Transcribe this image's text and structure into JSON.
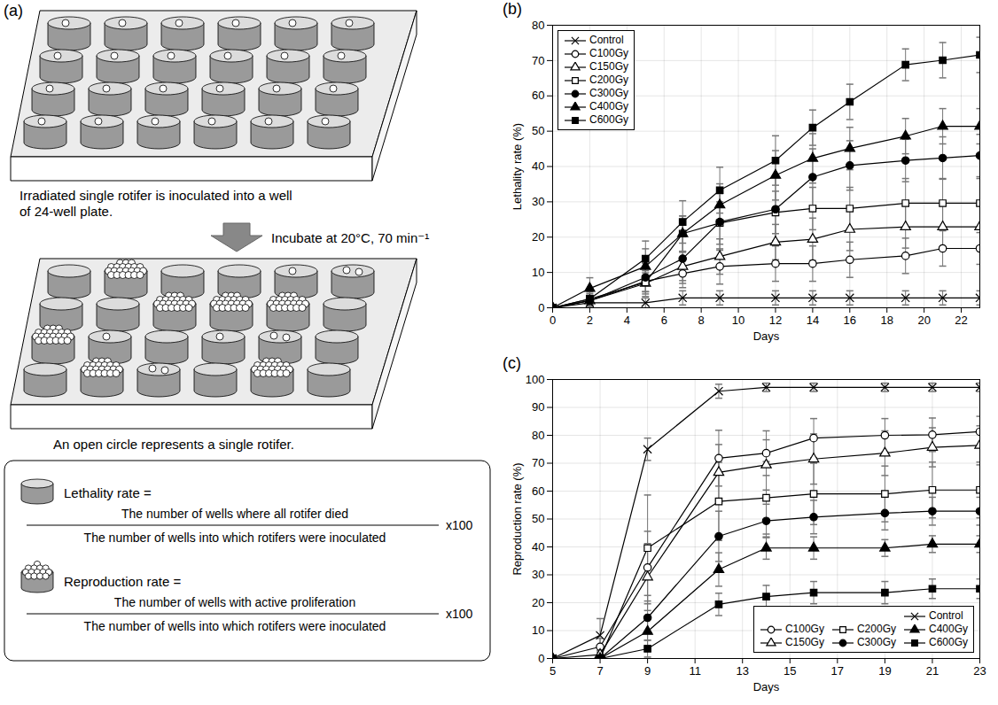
{
  "diagram": {
    "panel_label": "(a)",
    "caption_top": [
      "Irradiated single rotifer is inoculated into a well",
      "of 24-well plate."
    ],
    "arrow_text": "Incubate at 20°C, 70 min⁻¹",
    "caption_bottom": "An open circle represents a single rotifer.",
    "formulas": [
      {
        "name": "Lethality rate =",
        "numerator": "The number of wells where all rotifer died",
        "denominator": "The number of wells into which rotifers were inoculated",
        "factor": "x100"
      },
      {
        "name": "Reproduction rate =",
        "numerator": "The number of wells with active proliferation",
        "denominator": "The number of wells into which rotifers were inoculated",
        "factor": "x100"
      }
    ]
  },
  "chart_data": [
    {
      "type": "line",
      "panel_label": "(b)",
      "x_label": "Days",
      "y_label": "Lethality rate (%)",
      "x": [
        0,
        2,
        5,
        7,
        9,
        12,
        14,
        16,
        19,
        21,
        23
      ],
      "xlim": [
        0,
        23
      ],
      "xticks": [
        0,
        2,
        4,
        6,
        8,
        10,
        12,
        14,
        16,
        18,
        20,
        22
      ],
      "ylim": [
        0,
        80
      ],
      "yticks": [
        0,
        10,
        20,
        30,
        40,
        50,
        60,
        70,
        80
      ],
      "grid": true,
      "legend": "top-left",
      "series": [
        {
          "name": "Control",
          "color": "#000000",
          "marker": "x",
          "values": [
            0,
            1.4,
            1.4,
            2.8,
            2.8,
            2.8,
            2.8,
            2.8,
            2.8,
            2.8,
            2.8
          ],
          "errors": [
            0,
            1.4,
            1.4,
            2,
            2,
            2,
            2,
            2,
            2,
            2,
            2
          ]
        },
        {
          "name": "C100Gy",
          "color": "#000000",
          "marker": "circle-open",
          "values": [
            0,
            2,
            7.5,
            9.7,
            11.7,
            12.5,
            12.5,
            13.6,
            14.7,
            16.8,
            16.8
          ],
          "errors": [
            0,
            1.5,
            3,
            4,
            5,
            5,
            5,
            5,
            5,
            5,
            4.5
          ]
        },
        {
          "name": "C150Gy",
          "color": "#000000",
          "marker": "triangle-open",
          "values": [
            0,
            2,
            6.9,
            11.7,
            14.5,
            18.6,
            19.4,
            22.2,
            22.9,
            22.9,
            22.9
          ],
          "errors": [
            0,
            1.5,
            3,
            4,
            5,
            5,
            6,
            6,
            6,
            6,
            6
          ]
        },
        {
          "name": "C200Gy",
          "color": "#000000",
          "marker": "square-open",
          "values": [
            0,
            2.5,
            7.2,
            21,
            24,
            27,
            28.1,
            28.1,
            29.6,
            29.6,
            29.6
          ],
          "errors": [
            0,
            1.5,
            4,
            5,
            6,
            6,
            6,
            6,
            7,
            7,
            7
          ]
        },
        {
          "name": "C300Gy",
          "color": "#000000",
          "marker": "circle",
          "values": [
            0,
            2,
            8.6,
            13.9,
            24.3,
            27.9,
            37,
            40.3,
            41.7,
            42.4,
            43.1
          ],
          "errors": [
            0,
            1.5,
            4,
            7,
            8,
            9,
            8,
            7,
            6,
            6,
            6
          ]
        },
        {
          "name": "C400Gy",
          "color": "#000000",
          "marker": "triangle",
          "values": [
            0,
            5.5,
            11.7,
            21,
            29.1,
            37.5,
            42.3,
            45.1,
            48.6,
            51.4,
            51.4
          ],
          "errors": [
            0,
            3,
            5,
            5,
            6,
            7,
            7,
            6,
            5,
            5,
            5
          ]
        },
        {
          "name": "C600Gy",
          "color": "#000000",
          "marker": "square",
          "values": [
            0,
            2.5,
            13.9,
            24.3,
            33.3,
            41.7,
            51,
            58.3,
            68.8,
            70.1,
            71.6
          ],
          "errors": [
            0,
            2,
            5,
            6,
            6.5,
            7,
            5,
            5,
            4.5,
            5,
            5
          ]
        }
      ]
    },
    {
      "type": "line",
      "panel_label": "(c)",
      "x_label": "Days",
      "y_label": "Reproduction rate (%)",
      "x": [
        5,
        7,
        9,
        12,
        14,
        16,
        19,
        21,
        23
      ],
      "xlim": [
        5,
        23
      ],
      "xticks": [
        5,
        7,
        9,
        11,
        13,
        15,
        17,
        19,
        21,
        23
      ],
      "ylim": [
        0,
        100
      ],
      "yticks": [
        0,
        10,
        20,
        30,
        40,
        50,
        60,
        70,
        80,
        90,
        100
      ],
      "grid": true,
      "legend": "bottom-right",
      "series": [
        {
          "name": "Control",
          "color": "#000000",
          "marker": "x",
          "values": [
            0,
            8.3,
            75,
            95.8,
            97.2,
            97.2,
            97.2,
            97.2,
            97.2
          ],
          "errors": [
            0,
            6,
            4,
            2.5,
            1.5,
            1.5,
            1.5,
            1.5,
            1.5
          ]
        },
        {
          "name": "C100Gy",
          "color": "#000000",
          "marker": "circle-open",
          "values": [
            0,
            4.2,
            32.6,
            71.8,
            73.6,
            79,
            80,
            80.2,
            81.3
          ],
          "errors": [
            0,
            3,
            13,
            10,
            8,
            7,
            6,
            6,
            5.5
          ]
        },
        {
          "name": "C150Gy",
          "color": "#000000",
          "marker": "triangle-open",
          "values": [
            0,
            1.4,
            29.2,
            66.7,
            69.4,
            71.5,
            73.6,
            75.7,
            76.4
          ],
          "errors": [
            0,
            1.4,
            12,
            10,
            9,
            9,
            8,
            7,
            7
          ]
        },
        {
          "name": "C200Gy",
          "color": "#000000",
          "marker": "square-open",
          "values": [
            0,
            0,
            39.6,
            56.3,
            57.6,
            59,
            59,
            60.4,
            60.4
          ],
          "errors": [
            0,
            0,
            19,
            14,
            13,
            11,
            10,
            10,
            10
          ]
        },
        {
          "name": "C300Gy",
          "color": "#000000",
          "marker": "circle",
          "values": [
            0,
            0,
            14.6,
            43.8,
            49.3,
            50.7,
            52.1,
            52.8,
            52.8
          ],
          "errors": [
            0,
            0,
            8,
            9,
            6,
            6,
            6,
            5,
            5
          ]
        },
        {
          "name": "C400Gy",
          "color": "#000000",
          "marker": "triangle",
          "values": [
            0,
            0,
            9.7,
            31.9,
            39.6,
            39.6,
            39.6,
            41,
            41
          ],
          "errors": [
            0,
            0,
            5,
            6,
            4,
            4,
            3,
            3,
            3
          ]
        },
        {
          "name": "C600Gy",
          "color": "#000000",
          "marker": "square",
          "values": [
            0,
            0,
            3.5,
            19.4,
            22.2,
            23.6,
            23.6,
            25,
            25
          ],
          "errors": [
            0,
            0,
            3,
            4,
            4,
            4,
            4,
            3.5,
            3.5
          ]
        }
      ]
    }
  ]
}
